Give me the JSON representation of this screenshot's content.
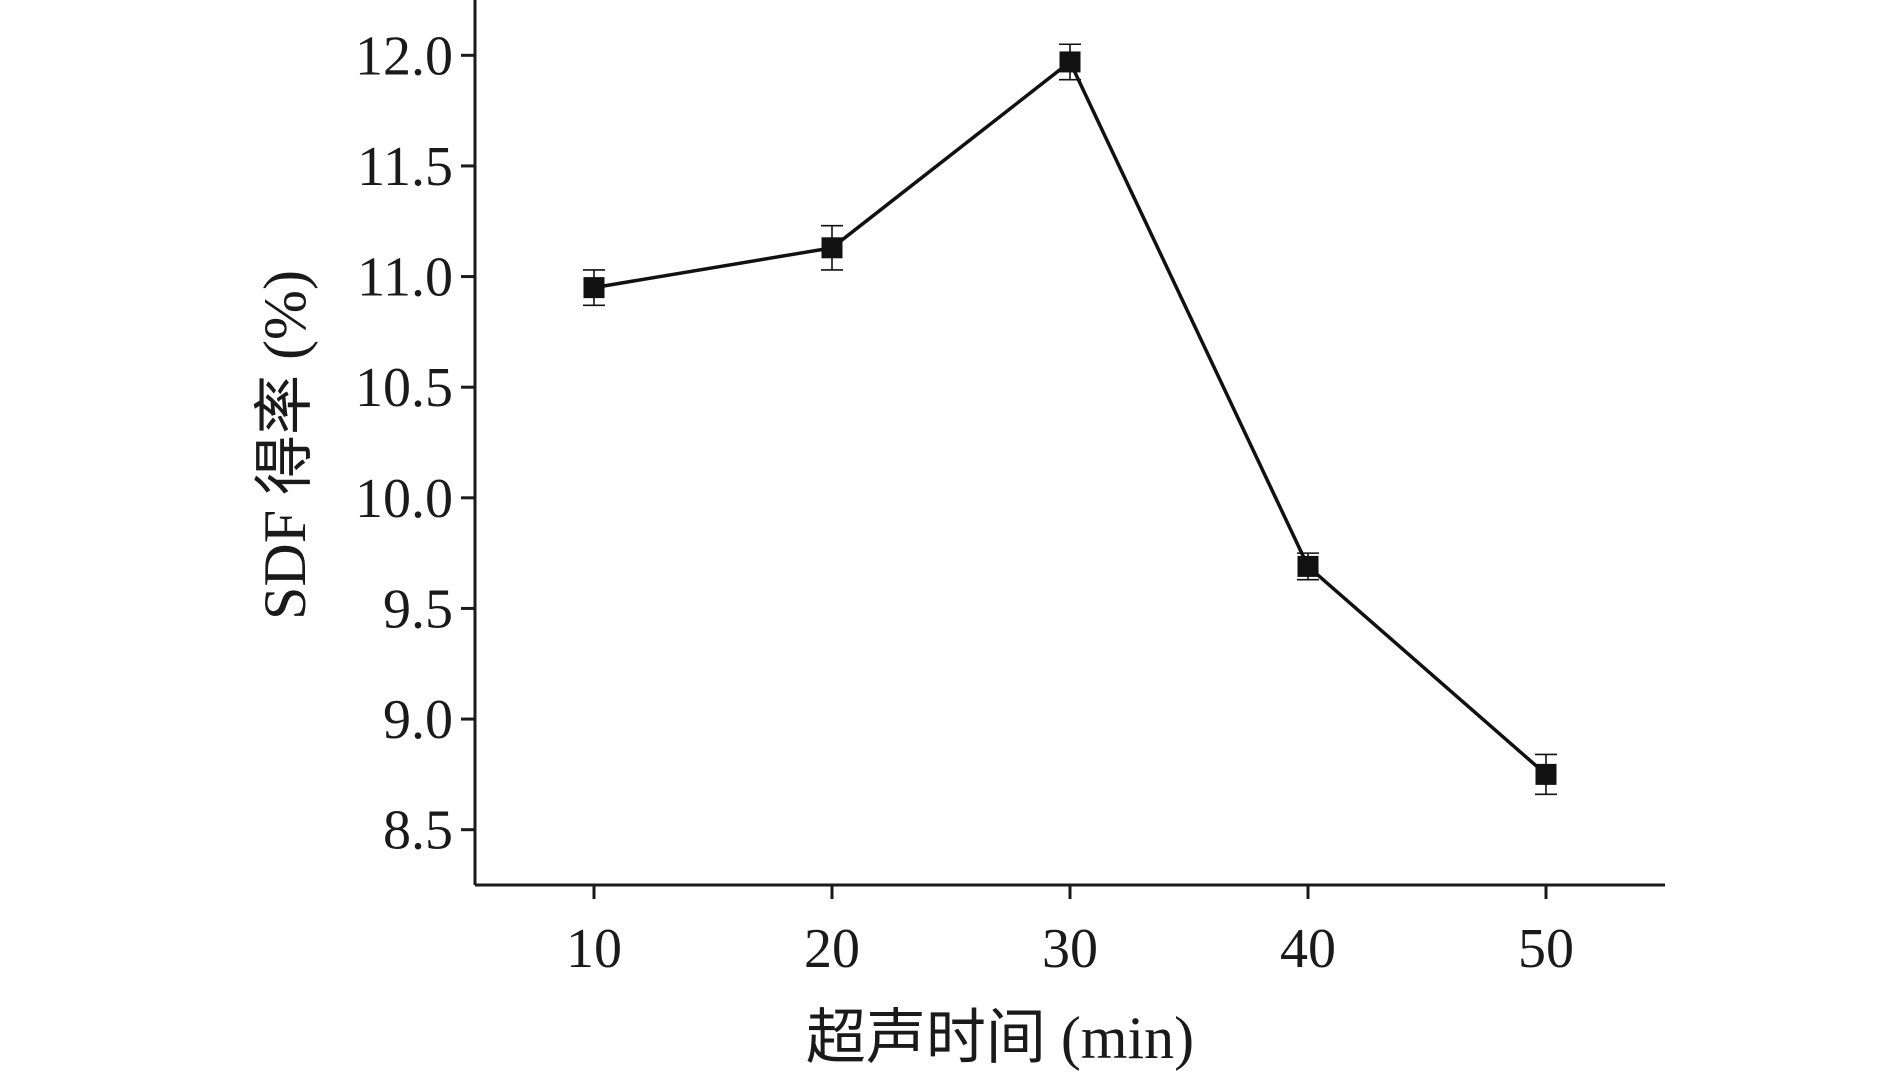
{
  "chart_data": {
    "type": "line",
    "title": "",
    "xlabel": "超声时间 (min)",
    "ylabel": "SDF 得率 (%)",
    "x": [
      10,
      20,
      30,
      40,
      50
    ],
    "xticks": [
      "10",
      "20",
      "30",
      "40",
      "50"
    ],
    "yticks": [
      "8.5",
      "9.0",
      "9.5",
      "10.0",
      "10.5",
      "11.0",
      "11.5",
      "12.0"
    ],
    "xlim": [
      5,
      55
    ],
    "ylim": [
      8.25,
      12.25
    ],
    "series": [
      {
        "values": [
          10.95,
          11.13,
          11.97,
          9.69,
          8.75
        ],
        "errors": [
          0.08,
          0.1,
          0.08,
          0.06,
          0.09
        ],
        "marker": "square",
        "color": "#111111"
      }
    ],
    "grid": false,
    "legend": "none"
  }
}
